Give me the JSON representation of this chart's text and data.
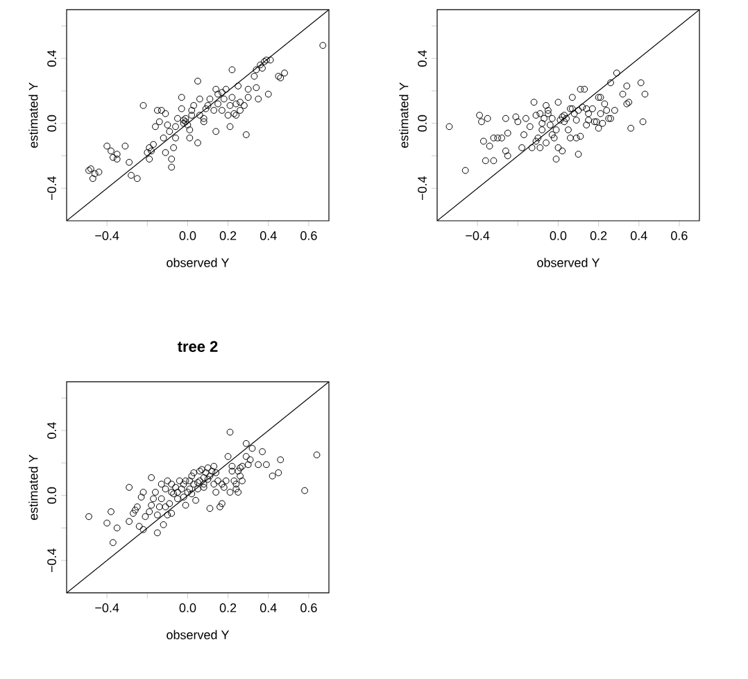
{
  "chart_data": [
    {
      "type": "scatter",
      "xlabel": "observed Y",
      "ylabel": "estimated Y",
      "marker": "circle",
      "xlim": [
        -0.6,
        0.7
      ],
      "ylim": [
        -0.6,
        0.7
      ],
      "xticks": [
        {
          "value": -0.4,
          "label": "−0.4"
        },
        {
          "value": -0.2,
          "label": null
        },
        {
          "value": 0,
          "label": "0.0"
        },
        {
          "value": 0.2,
          "label": "0.2"
        },
        {
          "value": 0.4,
          "label": "0.4"
        },
        {
          "value": 0.6,
          "label": "0.6"
        }
      ],
      "yticks": [
        {
          "value": -0.4,
          "label": "−0.4"
        },
        {
          "value": -0.2,
          "label": null
        },
        {
          "value": 0,
          "label": "0.0"
        },
        {
          "value": 0.2,
          "label": null
        },
        {
          "value": 0.4,
          "label": "0.4"
        },
        {
          "value": 0.6,
          "label": null
        }
      ],
      "series": [
        {
          "color": "#000000",
          "x": [
            -0.49,
            -0.48,
            -0.46,
            -0.47,
            -0.44,
            -0.4,
            -0.38,
            -0.37,
            -0.35,
            -0.35,
            -0.31,
            -0.29,
            -0.28,
            -0.25,
            -0.22,
            -0.2,
            -0.19,
            -0.19,
            -0.18,
            -0.17,
            -0.16,
            -0.15,
            -0.13,
            -0.14,
            -0.12,
            -0.11,
            -0.11,
            -0.1,
            -0.09,
            -0.08,
            -0.08,
            -0.07,
            -0.06,
            -0.06,
            -0.05,
            -0.03,
            -0.03,
            -0.02,
            -0.02,
            -0.01,
            -0.01,
            0.0,
            0.01,
            0.01,
            0.02,
            0.02,
            0.03,
            0.05,
            0.05,
            0.06,
            0.06,
            0.08,
            0.08,
            0.09,
            0.1,
            0.11,
            0.13,
            0.14,
            0.14,
            0.15,
            0.15,
            0.17,
            0.17,
            0.18,
            0.19,
            0.2,
            0.21,
            0.21,
            0.22,
            0.22,
            0.23,
            0.24,
            0.24,
            0.25,
            0.26,
            0.26,
            0.28,
            0.29,
            0.3,
            0.3,
            0.33,
            0.34,
            0.34,
            0.35,
            0.36,
            0.37,
            0.38,
            0.39,
            0.4,
            0.41,
            0.45,
            0.46,
            0.48,
            0.67
          ],
          "values": [
            -0.29,
            -0.28,
            -0.31,
            -0.34,
            -0.3,
            -0.14,
            -0.17,
            -0.21,
            -0.19,
            -0.22,
            -0.14,
            -0.24,
            -0.32,
            -0.34,
            0.11,
            -0.18,
            -0.15,
            -0.22,
            -0.17,
            -0.13,
            -0.02,
            0.08,
            0.08,
            0.01,
            -0.09,
            -0.18,
            0.06,
            -0.01,
            -0.05,
            -0.22,
            -0.27,
            -0.15,
            -0.09,
            -0.02,
            0.03,
            0.16,
            0.09,
            0.02,
            0.0,
            0.01,
            0.03,
            -0.01,
            -0.04,
            -0.09,
            0.05,
            0.08,
            0.11,
            0.26,
            -0.12,
            0.05,
            0.15,
            0.01,
            0.03,
            0.09,
            0.11,
            0.15,
            0.08,
            0.21,
            -0.05,
            0.18,
            0.12,
            0.08,
            0.19,
            0.15,
            0.21,
            0.05,
            0.11,
            -0.02,
            0.33,
            0.16,
            0.06,
            0.12,
            0.05,
            0.23,
            0.13,
            0.08,
            0.11,
            -0.07,
            0.16,
            0.21,
            0.29,
            0.33,
            0.22,
            0.15,
            0.36,
            0.34,
            0.38,
            0.39,
            0.18,
            0.39,
            0.29,
            0.28,
            0.31,
            0.48
          ]
        },
        {
          "type": "line",
          "marker": "none",
          "color": "#000000",
          "x": [
            -0.6,
            0.7
          ],
          "values": [
            -0.6,
            0.7
          ]
        }
      ]
    },
    {
      "type": "scatter",
      "xlabel": "observed Y",
      "ylabel": "estimated Y",
      "marker": "circle",
      "xlim": [
        -0.6,
        0.7
      ],
      "ylim": [
        -0.6,
        0.7
      ],
      "xticks": [
        {
          "value": -0.4,
          "label": "−0.4"
        },
        {
          "value": -0.2,
          "label": null
        },
        {
          "value": 0,
          "label": "0.0"
        },
        {
          "value": 0.2,
          "label": "0.2"
        },
        {
          "value": 0.4,
          "label": "0.4"
        },
        {
          "value": 0.6,
          "label": "0.6"
        }
      ],
      "yticks": [
        {
          "value": -0.4,
          "label": "−0.4"
        },
        {
          "value": -0.2,
          "label": null
        },
        {
          "value": 0,
          "label": "0.0"
        },
        {
          "value": 0.2,
          "label": null
        },
        {
          "value": 0.4,
          "label": "0.4"
        },
        {
          "value": 0.6,
          "label": null
        }
      ],
      "series": [
        {
          "color": "#000000",
          "x": [
            -0.54,
            -0.46,
            -0.39,
            -0.38,
            -0.37,
            -0.36,
            -0.35,
            -0.34,
            -0.32,
            -0.32,
            -0.3,
            -0.28,
            -0.26,
            -0.26,
            -0.25,
            -0.25,
            -0.21,
            -0.2,
            -0.18,
            -0.17,
            -0.16,
            -0.14,
            -0.13,
            -0.12,
            -0.11,
            -0.11,
            -0.1,
            -0.09,
            -0.09,
            -0.08,
            -0.08,
            -0.07,
            -0.06,
            -0.06,
            -0.05,
            -0.05,
            -0.04,
            -0.03,
            -0.03,
            -0.02,
            -0.01,
            -0.01,
            0.0,
            0.0,
            0.01,
            0.02,
            0.02,
            0.03,
            0.03,
            0.04,
            0.05,
            0.06,
            0.06,
            0.07,
            0.07,
            0.08,
            0.09,
            0.09,
            0.1,
            0.1,
            0.11,
            0.11,
            0.12,
            0.13,
            0.14,
            0.14,
            0.15,
            0.15,
            0.17,
            0.18,
            0.19,
            0.2,
            0.2,
            0.21,
            0.21,
            0.22,
            0.23,
            0.24,
            0.25,
            0.26,
            0.26,
            0.28,
            0.29,
            0.32,
            0.34,
            0.34,
            0.35,
            0.36,
            0.41,
            0.42,
            0.43
          ],
          "values": [
            -0.02,
            -0.29,
            0.05,
            0.01,
            -0.11,
            -0.23,
            0.03,
            -0.14,
            -0.23,
            -0.09,
            -0.09,
            -0.09,
            0.03,
            -0.17,
            -0.06,
            -0.2,
            0.04,
            0.01,
            -0.15,
            -0.07,
            0.03,
            -0.02,
            -0.15,
            0.13,
            -0.11,
            0.05,
            -0.09,
            0.06,
            -0.15,
            0.0,
            -0.04,
            0.03,
            -0.12,
            0.11,
            0.08,
            0.06,
            -0.01,
            0.03,
            -0.07,
            -0.09,
            -0.04,
            -0.22,
            0.13,
            -0.15,
            0.02,
            -0.17,
            0.04,
            0.01,
            0.05,
            0.03,
            -0.04,
            -0.09,
            0.09,
            0.16,
            0.09,
            0.06,
            -0.09,
            0.02,
            -0.19,
            0.08,
            -0.08,
            0.21,
            0.1,
            0.21,
            0.09,
            -0.01,
            0.06,
            0.02,
            0.09,
            0.01,
            0.01,
            0.16,
            -0.03,
            0.06,
            0.16,
            0.0,
            0.12,
            0.08,
            0.03,
            0.25,
            0.03,
            0.08,
            0.31,
            0.18,
            0.23,
            0.12,
            0.13,
            -0.03,
            0.25,
            0.01,
            0.18
          ]
        },
        {
          "type": "line",
          "marker": "none",
          "color": "#000000",
          "x": [
            -0.6,
            0.7
          ],
          "values": [
            -0.6,
            0.7
          ]
        }
      ]
    },
    {
      "type": "scatter",
      "title": "tree 2",
      "xlabel": "observed Y",
      "ylabel": "estimated Y",
      "marker": "circle",
      "xlim": [
        -0.6,
        0.7
      ],
      "ylim": [
        -0.6,
        0.7
      ],
      "xticks": [
        {
          "value": -0.4,
          "label": "−0.4"
        },
        {
          "value": -0.2,
          "label": null
        },
        {
          "value": 0,
          "label": "0.0"
        },
        {
          "value": 0.2,
          "label": "0.2"
        },
        {
          "value": 0.4,
          "label": "0.4"
        },
        {
          "value": 0.6,
          "label": "0.6"
        }
      ],
      "yticks": [
        {
          "value": -0.4,
          "label": "−0.4"
        },
        {
          "value": -0.2,
          "label": null
        },
        {
          "value": 0,
          "label": "0.0"
        },
        {
          "value": 0.2,
          "label": null
        },
        {
          "value": 0.4,
          "label": "0.4"
        },
        {
          "value": 0.6,
          "label": null
        }
      ],
      "series": [
        {
          "color": "#000000",
          "x": [
            -0.49,
            -0.4,
            -0.38,
            -0.37,
            -0.35,
            -0.29,
            -0.29,
            -0.27,
            -0.26,
            -0.25,
            -0.24,
            -0.23,
            -0.22,
            -0.22,
            -0.21,
            -0.19,
            -0.18,
            -0.18,
            -0.17,
            -0.16,
            -0.15,
            -0.15,
            -0.14,
            -0.13,
            -0.13,
            -0.12,
            -0.11,
            -0.11,
            -0.1,
            -0.1,
            -0.09,
            -0.08,
            -0.08,
            -0.08,
            -0.07,
            -0.06,
            -0.05,
            -0.05,
            -0.04,
            -0.03,
            -0.02,
            -0.02,
            -0.01,
            -0.01,
            0.0,
            0.01,
            0.01,
            0.02,
            0.02,
            0.03,
            0.03,
            0.04,
            0.05,
            0.05,
            0.06,
            0.06,
            0.07,
            0.08,
            0.08,
            0.08,
            0.09,
            0.1,
            0.1,
            0.11,
            0.11,
            0.12,
            0.13,
            0.13,
            0.14,
            0.14,
            0.15,
            0.16,
            0.17,
            0.17,
            0.18,
            0.19,
            0.2,
            0.21,
            0.21,
            0.22,
            0.22,
            0.23,
            0.24,
            0.24,
            0.25,
            0.25,
            0.26,
            0.26,
            0.27,
            0.27,
            0.29,
            0.29,
            0.3,
            0.31,
            0.32,
            0.35,
            0.37,
            0.39,
            0.42,
            0.45,
            0.46,
            0.58,
            0.64
          ],
          "values": [
            -0.13,
            -0.17,
            -0.1,
            -0.29,
            -0.2,
            0.05,
            -0.16,
            -0.11,
            -0.09,
            -0.07,
            -0.19,
            -0.01,
            0.02,
            -0.21,
            -0.13,
            -0.1,
            0.11,
            -0.06,
            -0.02,
            0.02,
            -0.23,
            -0.12,
            -0.07,
            0.07,
            -0.02,
            -0.18,
            0.04,
            -0.07,
            0.09,
            -0.12,
            -0.05,
            0.02,
            0.07,
            -0.11,
            0.01,
            0.05,
            -0.02,
            0.02,
            0.09,
            0.04,
            -0.01,
            0.07,
            0.09,
            -0.06,
            0.02,
            0.04,
            0.09,
            0.01,
            0.12,
            0.07,
            0.14,
            -0.03,
            0.08,
            0.04,
            0.15,
            0.09,
            0.16,
            0.11,
            0.07,
            0.05,
            0.14,
            0.1,
            0.17,
            0.12,
            -0.08,
            0.15,
            0.18,
            0.07,
            0.02,
            0.14,
            0.09,
            -0.07,
            0.07,
            -0.05,
            0.05,
            0.09,
            0.24,
            0.02,
            0.39,
            0.15,
            0.18,
            0.09,
            0.07,
            0.04,
            0.15,
            0.02,
            0.12,
            0.17,
            0.18,
            0.09,
            0.32,
            0.24,
            0.19,
            0.22,
            0.29,
            0.19,
            0.27,
            0.19,
            0.12,
            0.14,
            0.22,
            0.03,
            0.25
          ]
        },
        {
          "type": "line",
          "marker": "none",
          "color": "#000000",
          "x": [
            -0.6,
            0.7
          ],
          "values": [
            -0.6,
            0.7
          ]
        }
      ]
    }
  ]
}
